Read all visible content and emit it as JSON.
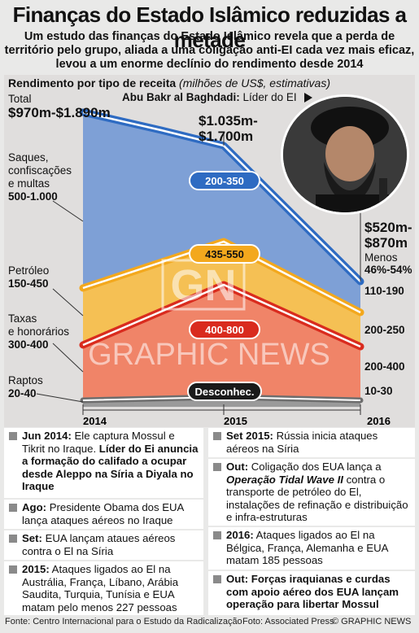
{
  "title": "Finanças do Estado Islâmico reduzidas a metade",
  "subtitle": "Um estudo das finanças do Estado Islâmico revela que a perda de território pelo grupo, aliada a uma coligação anti-EI cada vez mais eficaz, levou a um enorme declínio do rendimento desde 2014",
  "chart_title": "Rendimento por tipo de receita",
  "chart_units": "(milhões de US$, estimativas)",
  "photo_caption": {
    "name": "Abu Bakr al Baghdadi:",
    "role": "Líder do EI"
  },
  "total_label": "Total",
  "total_2014": "$970m-$1.890m",
  "total_2015": "$1.035m-\n$1.700m",
  "total_2016": "$520m-\n$870m",
  "less_label": "Menos",
  "less_value": "46%-54%",
  "watermark": "GRAPHIC NEWS",
  "watermark_logo": "GN",
  "chart_data": {
    "type": "area",
    "x": [
      "2014",
      "2015",
      "2016"
    ],
    "series": [
      {
        "name": "Saques, confiscações e multas",
        "range_2014": "500-1.000",
        "range_2015": "200-350",
        "range_2016": "110-190",
        "color": "#7ea0d6",
        "line": "#2e6bc2"
      },
      {
        "name": "Petróleo",
        "range_2014": "150-450",
        "range_2015": "435-550",
        "range_2016": "200-250",
        "color": "#f5c054",
        "line": "#f3a81d"
      },
      {
        "name": "Taxas e honorários",
        "range_2014": "300-400",
        "range_2015": "400-800",
        "range_2016": "200-400",
        "color": "#f08468",
        "line": "#d92b1e"
      },
      {
        "name": "Raptos",
        "range_2014": "20-40",
        "range_2015": "Desconhec.",
        "range_2016": "10-30",
        "color": "#9a9a9a",
        "line": "#6e6e6e"
      }
    ]
  },
  "left_labels": {
    "looting": "Saques,\nconfiscações\ne multas",
    "looting_range": "500-1.000",
    "oil": "Petróleo",
    "oil_range": "150-450",
    "taxes": "Taxas\ne honorários",
    "taxes_range": "300-400",
    "kidnap": "Raptos",
    "kidnap_range": "20-40"
  },
  "events_left": [
    {
      "bold_head": "Jun 2014:",
      "text": " Ele captura Mossul e Tikrit no Iraque. ",
      "bold_tail": "Líder do Ei anuncia a formação do califado a ocupar desde Aleppo na Síria a Diyala no Iraque"
    },
    {
      "bold_head": "Ago:",
      "text": " Presidente Obama dos EUA lança ataques aéreos no Iraque"
    },
    {
      "bold_head": "Set:",
      "text": " EUA lançam ataues aéreos contra o El na Síria"
    },
    {
      "bold_head": "2015:",
      "text": " Ataques ligados ao El na Austrália, França, Líbano, Arábia Saudita, Turquia, Tunísia e EUA matam pelo menos 227 pessoas"
    }
  ],
  "events_right": [
    {
      "bold_head": "Set 2015:",
      "text": " Rússia inicia ataques aéreos na Síria"
    },
    {
      "bold_head": "Out:",
      "text": " Coligação dos EUA lança a ",
      "italic": "Operação Tidal Wave II",
      "text2": " contra o transporte de petróleo do El, instalações de refinação e distribuição e infra-estruturas"
    },
    {
      "bold_head": "2016:",
      "text": " Ataques ligados ao El na Bélgica, França, Alemanha e EUA matam 185 pessoas"
    },
    {
      "bold_head": "Out: Forças iraquianas e curdas com apoio aéreo dos EUA lançam operação para libertar Mossul"
    }
  ],
  "footer_source": "Fonte: Centro Internacional para o Estudo da Radicalização",
  "footer_photo": "Foto: Associated Press",
  "footer_copyright": "© GRAPHIC NEWS"
}
